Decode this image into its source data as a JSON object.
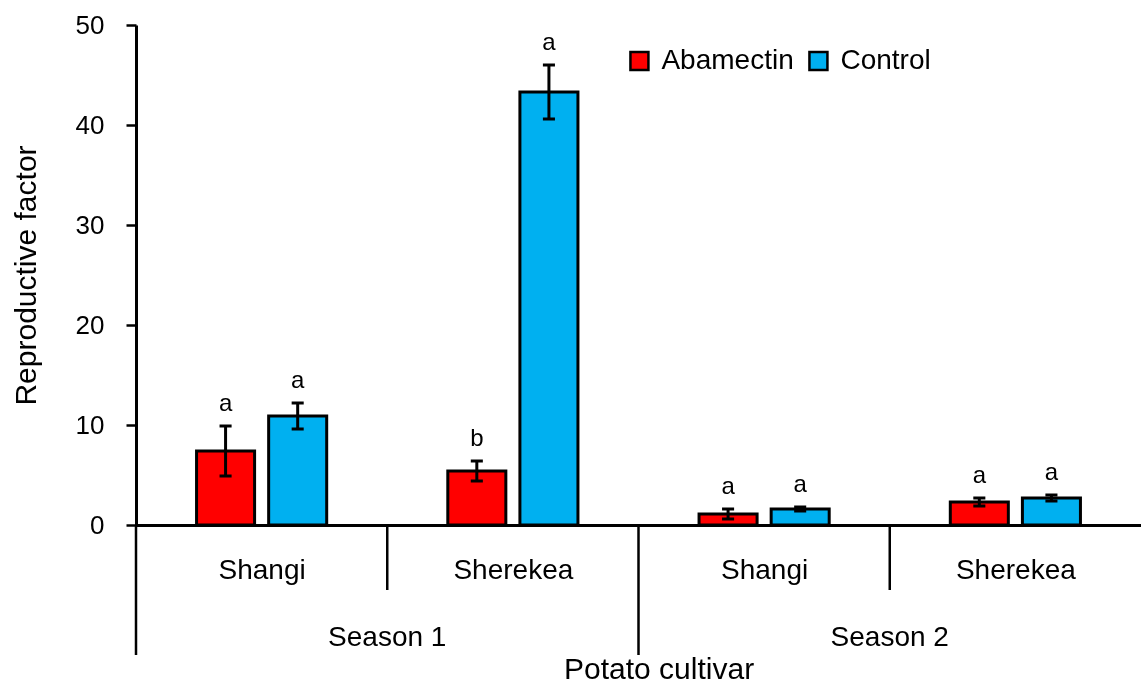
{
  "chart_data": {
    "type": "bar",
    "ylabel": "Reproductive factor",
    "xlabel": "Potato cultivar",
    "categories": [
      "Shangi",
      "Sherekea",
      "Shangi",
      "Sherekea"
    ],
    "series": [
      {
        "name": "Abamectin",
        "color": "#ff0000",
        "values": [
          7.4,
          5.4,
          1.1,
          2.3
        ],
        "errors": [
          2.5,
          1.0,
          0.5,
          0.4
        ]
      },
      {
        "name": "Control",
        "color": "#00b0f0",
        "values": [
          10.9,
          43.3,
          1.6,
          2.7
        ],
        "errors": [
          1.3,
          2.7,
          0.2,
          0.3
        ]
      }
    ],
    "ylim": [
      0,
      50
    ],
    "yticks": [
      0,
      10,
      20,
      30,
      40,
      50
    ],
    "grid": false,
    "legend": "top right",
    "annotations": [
      "a",
      "a",
      "b",
      "a",
      "a",
      "a",
      "a",
      "a",
      "Season 1",
      "Season 2"
    ]
  }
}
